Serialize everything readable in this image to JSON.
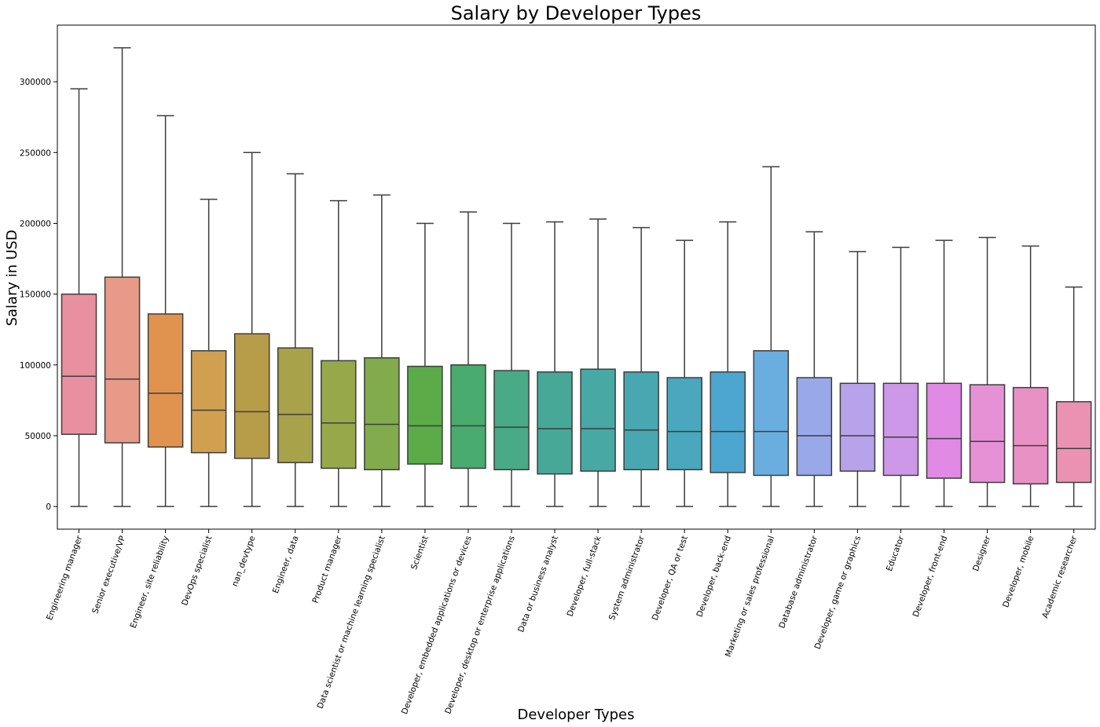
{
  "chart_data": {
    "type": "box",
    "title": "Salary by Developer Types",
    "xlabel": "Developer Types",
    "ylabel": "Salary in USD",
    "ylim": [
      -16000,
      340000
    ],
    "yticks": [
      0,
      50000,
      100000,
      150000,
      200000,
      250000,
      300000
    ],
    "grid": false,
    "categories": [
      "Engineering manager",
      "Senior executive/VP",
      "Engineer, site reliability",
      "DevOps specialist",
      "nan_devtype",
      "Engineer, data",
      "Product manager",
      "Data scientist or machine learning specialist",
      "Scientist",
      "Developer, embedded applications or devices",
      "Developer, desktop or enterprise applications",
      "Data or business analyst",
      "Developer, full-stack",
      "System administrator",
      "Developer, QA or test",
      "Developer, back-end",
      "Marketing or sales professional",
      "Database administrator",
      "Developer, game or graphics",
      "Educator",
      "Developer, front-end",
      "Designer",
      "Developer, mobile",
      "Academic researcher"
    ],
    "boxes": [
      {
        "min": 0,
        "q1": 51000,
        "median": 92000,
        "q3": 150000,
        "max": 295000,
        "color": "#e8909f"
      },
      {
        "min": 0,
        "q1": 45000,
        "median": 90000,
        "q3": 162000,
        "max": 324000,
        "color": "#e89a88"
      },
      {
        "min": 0,
        "q1": 42000,
        "median": 80000,
        "q3": 136000,
        "max": 276000,
        "color": "#e0934f"
      },
      {
        "min": 0,
        "q1": 38000,
        "median": 68000,
        "q3": 110000,
        "max": 217000,
        "color": "#d0a050"
      },
      {
        "min": 0,
        "q1": 34000,
        "median": 67000,
        "q3": 122000,
        "max": 250000,
        "color": "#b79c49"
      },
      {
        "min": 0,
        "q1": 31000,
        "median": 65000,
        "q3": 112000,
        "max": 235000,
        "color": "#a8a24a"
      },
      {
        "min": 0,
        "q1": 27000,
        "median": 59000,
        "q3": 103000,
        "max": 216000,
        "color": "#96a84a"
      },
      {
        "min": 0,
        "q1": 26000,
        "median": 58000,
        "q3": 105000,
        "max": 220000,
        "color": "#81ab4c"
      },
      {
        "min": 0,
        "q1": 30000,
        "median": 57000,
        "q3": 99000,
        "max": 200000,
        "color": "#5bac48"
      },
      {
        "min": 0,
        "q1": 27000,
        "median": 57000,
        "q3": 100000,
        "max": 208000,
        "color": "#4aab6f"
      },
      {
        "min": 0,
        "q1": 26000,
        "median": 56000,
        "q3": 96000,
        "max": 200000,
        "color": "#48aa86"
      },
      {
        "min": 0,
        "q1": 23000,
        "median": 55000,
        "q3": 95000,
        "max": 201000,
        "color": "#47a898"
      },
      {
        "min": 0,
        "q1": 25000,
        "median": 55000,
        "q3": 97000,
        "max": 203000,
        "color": "#47a8a4"
      },
      {
        "min": 0,
        "q1": 26000,
        "median": 54000,
        "q3": 95000,
        "max": 197000,
        "color": "#48a7b0"
      },
      {
        "min": 0,
        "q1": 26000,
        "median": 53000,
        "q3": 91000,
        "max": 188000,
        "color": "#4aa7be"
      },
      {
        "min": 0,
        "q1": 24000,
        "median": 53000,
        "q3": 95000,
        "max": 201000,
        "color": "#4da6cf"
      },
      {
        "min": 0,
        "q1": 22000,
        "median": 53000,
        "q3": 110000,
        "max": 240000,
        "color": "#6aaee0"
      },
      {
        "min": 0,
        "q1": 22000,
        "median": 50000,
        "q3": 91000,
        "max": 194000,
        "color": "#98a8e8"
      },
      {
        "min": 0,
        "q1": 25000,
        "median": 50000,
        "q3": 87000,
        "max": 180000,
        "color": "#b6a3ea"
      },
      {
        "min": 0,
        "q1": 22000,
        "median": 49000,
        "q3": 87000,
        "max": 183000,
        "color": "#cd98e8"
      },
      {
        "min": 0,
        "q1": 20000,
        "median": 48000,
        "q3": 87000,
        "max": 188000,
        "color": "#e08ae6"
      },
      {
        "min": 0,
        "q1": 17000,
        "median": 46000,
        "q3": 86000,
        "max": 190000,
        "color": "#e691d6"
      },
      {
        "min": 0,
        "q1": 16000,
        "median": 43000,
        "q3": 84000,
        "max": 184000,
        "color": "#e891c4"
      },
      {
        "min": 0,
        "q1": 17000,
        "median": 41000,
        "q3": 74000,
        "max": 155000,
        "color": "#eb92b3"
      }
    ]
  }
}
